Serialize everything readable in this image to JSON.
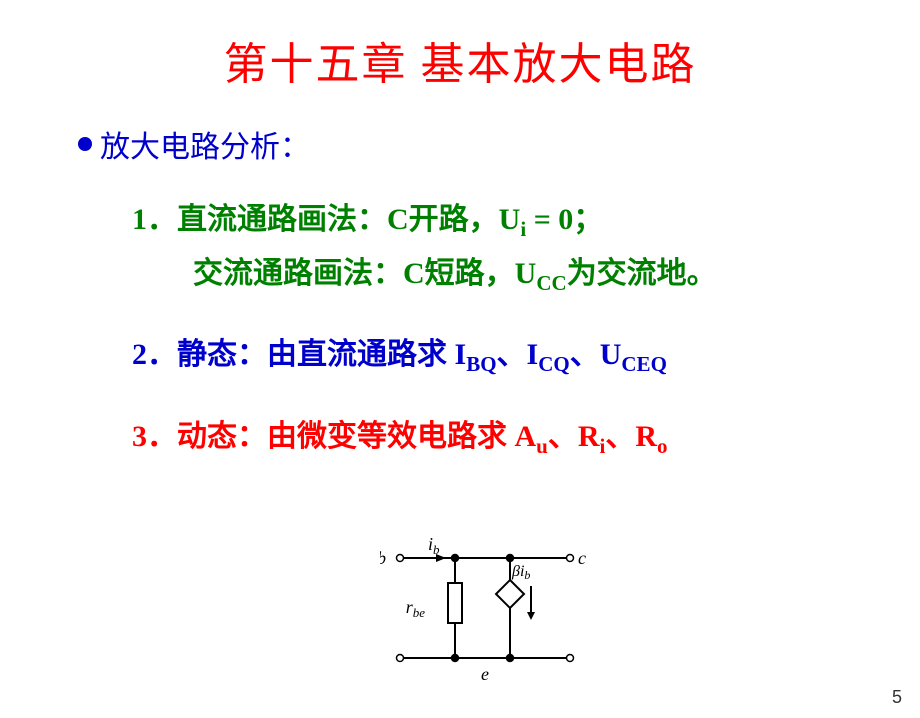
{
  "title_color": "#ff0000",
  "bullet_color": "#0000cc",
  "item1_color": "#008000",
  "item2_color": "#0000cc",
  "item3_color": "#ff0000",
  "title": "第十五章  基本放大电路",
  "bullet": "放大电路分析：",
  "item1_num": "1．",
  "item1_a1": "直流通路画法：C开路，U",
  "item1_a_sub": "i",
  "item1_a2": " = 0；",
  "item1_b1": "交流通路画法：C短路，U",
  "item1_b_sub": "CC",
  "item1_b2": "为交流地。",
  "item2_num": "2．",
  "item2_a": "静态：由直流通路求  I",
  "item2_s1": "BQ",
  "item2_sep1": "、I",
  "item2_s2": "CQ",
  "item2_sep2": "、U",
  "item2_s3": "CEQ",
  "item3_num": "3．",
  "item3_a": "动态：由微变等效电路求  A",
  "item3_s1": "u",
  "item3_sep1": "、R",
  "item3_s2": "i",
  "item3_sep2": "、R",
  "item3_s3": "o",
  "circ_b": "b",
  "circ_c": "c",
  "circ_e": "e",
  "circ_ib": "i",
  "circ_ib_sub": "b",
  "circ_rbe": "r",
  "circ_rbe_sub": "be",
  "circ_beta": "β",
  "page_number": "5",
  "circuit": {
    "stroke": "#000000",
    "stroke_width": 2,
    "node_radius": 3.5,
    "label_font": "italic 18px 'Times New Roman', serif",
    "label_sub_font": "italic 13px 'Times New Roman', serif"
  }
}
